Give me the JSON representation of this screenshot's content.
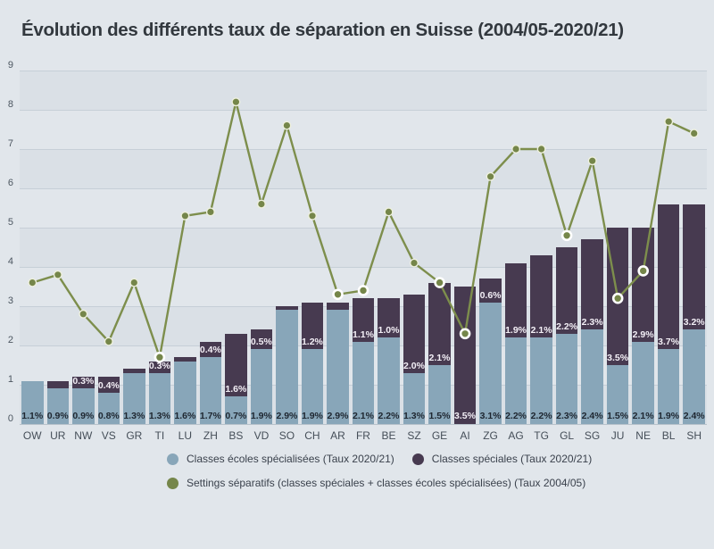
{
  "title": "Évolution des différents taux de séparation en Suisse (2004/05-2020/21)",
  "colors": {
    "background": "#e1e6eb",
    "bar_blue": "#88a6b9",
    "bar_purple": "#473a50",
    "line_olive": "#7d8e4c",
    "dot_fill": "#75864a",
    "dot_ring": "#eef0de",
    "dot_ring_highlight": "#ffffff",
    "grid": "#c6cfd7",
    "title_text": "#32383e",
    "axis_text": "#4c5660"
  },
  "legend": {
    "items": [
      {
        "label": "Classes écoles spécialisées (Taux 2020/21)",
        "color": "#88a6b9"
      },
      {
        "label": "Classes spéciales (Taux 2020/21)",
        "color": "#473a50"
      },
      {
        "label": "Settings séparatifs (classes spéciales + classes écoles spécialisées) (Taux 2004/05)",
        "color": "#75864a"
      }
    ]
  },
  "chart_data": {
    "type": "bar",
    "subtype": "stacked-bars-with-line-overlay",
    "title": "Évolution des différents taux de séparation en Suisse (2004/05-2020/21)",
    "xlabel": "",
    "ylabel": "",
    "ylim": [
      0,
      9
    ],
    "yticks": [
      0,
      1,
      2,
      3,
      4,
      5,
      6,
      7,
      8,
      9
    ],
    "grid": true,
    "legend_position": "bottom",
    "categories": [
      "OW",
      "UR",
      "NW",
      "VS",
      "GR",
      "TI",
      "LU",
      "ZH",
      "BS",
      "VD",
      "SO",
      "CH",
      "AR",
      "FR",
      "BE",
      "SZ",
      "GE",
      "AI",
      "ZG",
      "AG",
      "TG",
      "GL",
      "SG",
      "JU",
      "NE",
      "BL",
      "SH"
    ],
    "bars": [
      {
        "code": "OW",
        "blue": 1.1,
        "dark": 0.0,
        "bottom_label": "1.1%",
        "dark_label": ""
      },
      {
        "code": "UR",
        "blue": 0.9,
        "dark": 0.2,
        "bottom_label": "0.9%",
        "dark_label": ""
      },
      {
        "code": "NW",
        "blue": 0.9,
        "dark": 0.3,
        "bottom_label": "0.9%",
        "dark_label": "0.3%"
      },
      {
        "code": "VS",
        "blue": 0.8,
        "dark": 0.4,
        "bottom_label": "0.8%",
        "dark_label": "0.4%"
      },
      {
        "code": "GR",
        "blue": 1.3,
        "dark": 0.1,
        "bottom_label": "1.3%",
        "dark_label": ""
      },
      {
        "code": "TI",
        "blue": 1.3,
        "dark": 0.3,
        "bottom_label": "1.3%",
        "dark_label": "0.3%"
      },
      {
        "code": "LU",
        "blue": 1.6,
        "dark": 0.1,
        "bottom_label": "1.6%",
        "dark_label": ""
      },
      {
        "code": "ZH",
        "blue": 1.7,
        "dark": 0.4,
        "bottom_label": "1.7%",
        "dark_label": "0.4%"
      },
      {
        "code": "BS",
        "blue": 0.7,
        "dark": 1.6,
        "bottom_label": "0.7%",
        "dark_label": "1.6%"
      },
      {
        "code": "VD",
        "blue": 1.9,
        "dark": 0.5,
        "bottom_label": "1.9%",
        "dark_label": "0.5%"
      },
      {
        "code": "SO",
        "blue": 2.9,
        "dark": 0.1,
        "bottom_label": "2.9%",
        "dark_label": ""
      },
      {
        "code": "CH",
        "blue": 1.9,
        "dark": 1.2,
        "bottom_label": "1.9%",
        "dark_label": "1.2%"
      },
      {
        "code": "AR",
        "blue": 2.9,
        "dark": 0.2,
        "bottom_label": "2.9%",
        "dark_label": ""
      },
      {
        "code": "FR",
        "blue": 2.1,
        "dark": 1.1,
        "bottom_label": "2.1%",
        "dark_label": "1.1%"
      },
      {
        "code": "BE",
        "blue": 2.2,
        "dark": 1.0,
        "bottom_label": "2.2%",
        "dark_label": "1.0%"
      },
      {
        "code": "SZ",
        "blue": 1.3,
        "dark": 2.0,
        "bottom_label": "1.3%",
        "dark_label": "2.0%"
      },
      {
        "code": "GE",
        "blue": 1.5,
        "dark": 2.1,
        "bottom_label": "1.5%",
        "dark_label": "2.1%"
      },
      {
        "code": "AI",
        "blue": 0.0,
        "dark": 3.5,
        "bottom_label": "3.5%",
        "dark_label": ""
      },
      {
        "code": "ZG",
        "blue": 3.1,
        "dark": 0.6,
        "bottom_label": "3.1%",
        "dark_label": "0.6%"
      },
      {
        "code": "AG",
        "blue": 2.2,
        "dark": 1.9,
        "bottom_label": "2.2%",
        "dark_label": "1.9%"
      },
      {
        "code": "TG",
        "blue": 2.2,
        "dark": 2.1,
        "bottom_label": "2.2%",
        "dark_label": "2.1%"
      },
      {
        "code": "GL",
        "blue": 2.3,
        "dark": 2.2,
        "bottom_label": "2.3%",
        "dark_label": "2.2%"
      },
      {
        "code": "SG",
        "blue": 2.4,
        "dark": 2.3,
        "bottom_label": "2.4%",
        "dark_label": "2.3%"
      },
      {
        "code": "JU",
        "blue": 1.5,
        "dark": 3.5,
        "bottom_label": "1.5%",
        "dark_label": "3.5%"
      },
      {
        "code": "NE",
        "blue": 2.1,
        "dark": 2.9,
        "bottom_label": "2.1%",
        "dark_label": "2.9%"
      },
      {
        "code": "BL",
        "blue": 1.9,
        "dark": 3.7,
        "bottom_label": "1.9%",
        "dark_label": "3.7%"
      },
      {
        "code": "SH",
        "blue": 2.4,
        "dark": 3.2,
        "bottom_label": "2.4%",
        "dark_label": "3.2%"
      }
    ],
    "series": [
      {
        "name": "Classes écoles spécialisées (Taux 2020/21)",
        "type": "bar",
        "values": [
          1.1,
          0.9,
          0.9,
          0.8,
          1.3,
          1.3,
          1.6,
          1.7,
          0.7,
          1.9,
          2.9,
          1.9,
          2.9,
          2.1,
          2.2,
          1.3,
          1.5,
          0.0,
          3.1,
          2.2,
          2.2,
          2.3,
          2.4,
          1.5,
          2.1,
          1.9,
          2.4
        ]
      },
      {
        "name": "Classes spéciales (Taux 2020/21)",
        "type": "bar",
        "values": [
          0.0,
          0.2,
          0.3,
          0.4,
          0.1,
          0.3,
          0.1,
          0.4,
          1.6,
          0.5,
          0.1,
          1.2,
          0.2,
          1.1,
          1.0,
          2.0,
          2.1,
          3.5,
          0.6,
          1.9,
          2.1,
          2.2,
          2.3,
          3.5,
          2.9,
          3.7,
          3.2
        ]
      },
      {
        "name": "Settings séparatifs (classes spéciales + classes écoles spécialisées) (Taux 2004/05)",
        "type": "line",
        "values": [
          3.6,
          3.8,
          2.8,
          2.1,
          3.6,
          1.7,
          5.3,
          5.4,
          8.2,
          5.6,
          7.6,
          5.3,
          3.3,
          3.4,
          5.4,
          4.1,
          3.6,
          2.3,
          6.3,
          7.0,
          7.0,
          4.8,
          6.7,
          3.2,
          3.9,
          7.7,
          7.4
        ]
      }
    ]
  }
}
